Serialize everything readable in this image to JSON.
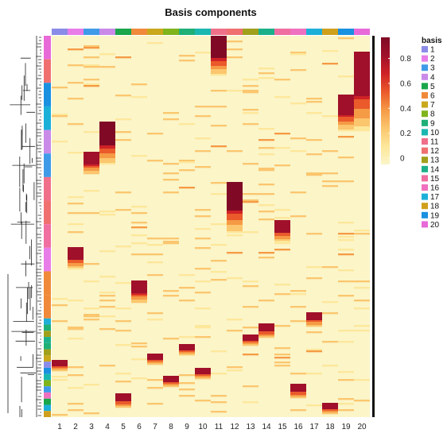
{
  "chart_data": {
    "type": "heatmap",
    "title": "Basis components",
    "xlabel": "",
    "ylabel": "",
    "columns": [
      "1",
      "2",
      "3",
      "4",
      "5",
      "6",
      "7",
      "8",
      "9",
      "10",
      "11",
      "12",
      "13",
      "14",
      "15",
      "16",
      "17",
      "18",
      "19",
      "20"
    ],
    "column_colors": [
      "#8b8be8",
      "#e87de8",
      "#3f9be8",
      "#c98ae8",
      "#1aa64a",
      "#f08a3a",
      "#c9a81c",
      "#7fb41c",
      "#1eb077",
      "#1ab8b0",
      "#f0708a",
      "#f07070",
      "#a0a01c",
      "#1cb08a",
      "#f06ea0",
      "#f070c0",
      "#1cb0d8",
      "#d0a01c",
      "#1a90e0",
      "#e86ad8"
    ],
    "row_group_order": [
      20,
      12,
      19,
      17,
      4,
      3,
      11,
      12,
      15,
      2,
      6,
      6,
      17,
      9,
      13,
      14,
      9,
      13,
      7,
      1,
      19,
      10,
      8,
      3,
      16,
      5,
      17,
      18
    ],
    "color_scale": {
      "min": 0,
      "max": 1,
      "ticks": [
        "0",
        "0.2",
        "0.4",
        "0.6",
        "0.8"
      ],
      "colors": [
        "#fbf5c8",
        "#fde79a",
        "#fbc66e",
        "#f59a45",
        "#ea5a2b",
        "#cf2226",
        "#a0102a",
        "#800a26"
      ]
    },
    "legend": {
      "title": "basis",
      "labels": [
        "1",
        "2",
        "3",
        "4",
        "5",
        "6",
        "7",
        "8",
        "9",
        "10",
        "11",
        "12",
        "13",
        "14",
        "15",
        "16",
        "17",
        "18",
        "19",
        "20"
      ]
    },
    "blocks": [
      {
        "column": 11,
        "rows_from": 0.0,
        "rows_to": 0.055,
        "value": 0.95
      },
      {
        "column": 20,
        "rows_from": 0.045,
        "rows_to": 0.155,
        "value": 0.92
      },
      {
        "column": 19,
        "rows_from": 0.155,
        "rows_to": 0.205,
        "value": 0.88
      },
      {
        "column": 4,
        "rows_from": 0.225,
        "rows_to": 0.285,
        "value": 0.93
      },
      {
        "column": 3,
        "rows_from": 0.305,
        "rows_to": 0.335,
        "value": 0.9
      },
      {
        "column": 12,
        "rows_from": 0.385,
        "rows_to": 0.455,
        "value": 0.94
      },
      {
        "column": 15,
        "rows_from": 0.485,
        "rows_to": 0.515,
        "value": 0.85
      },
      {
        "column": 2,
        "rows_from": 0.555,
        "rows_to": 0.585,
        "value": 0.85
      },
      {
        "column": 6,
        "rows_from": 0.645,
        "rows_to": 0.675,
        "value": 0.9
      },
      {
        "column": 17,
        "rows_from": 0.725,
        "rows_to": 0.745,
        "value": 0.82
      },
      {
        "column": 14,
        "rows_from": 0.755,
        "rows_to": 0.775,
        "value": 0.85
      },
      {
        "column": 13,
        "rows_from": 0.785,
        "rows_to": 0.8,
        "value": 0.82
      },
      {
        "column": 9,
        "rows_from": 0.81,
        "rows_to": 0.825,
        "value": 0.8
      },
      {
        "column": 7,
        "rows_from": 0.835,
        "rows_to": 0.847,
        "value": 0.85
      },
      {
        "column": 1,
        "rows_from": 0.852,
        "rows_to": 0.864,
        "value": 0.85
      },
      {
        "column": 10,
        "rows_from": 0.872,
        "rows_to": 0.885,
        "value": 0.85
      },
      {
        "column": 8,
        "rows_from": 0.892,
        "rows_to": 0.905,
        "value": 0.85
      },
      {
        "column": 16,
        "rows_from": 0.915,
        "rows_to": 0.93,
        "value": 0.85
      },
      {
        "column": 5,
        "rows_from": 0.94,
        "rows_to": 0.955,
        "value": 0.85
      },
      {
        "column": 18,
        "rows_from": 0.965,
        "rows_to": 0.977,
        "value": 0.8
      }
    ]
  }
}
